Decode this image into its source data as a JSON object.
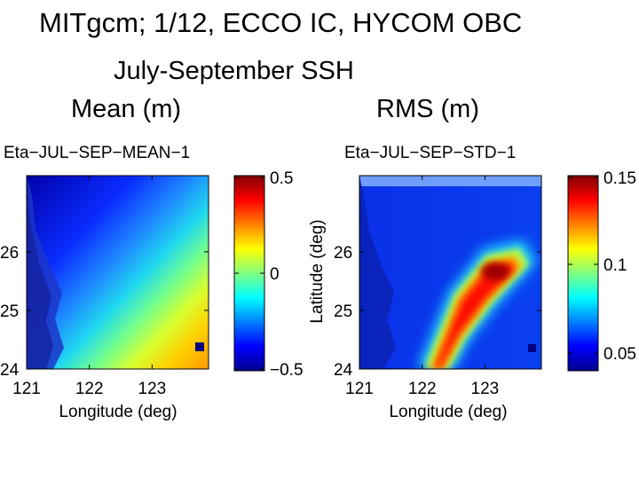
{
  "title_line1": "MITgcm; 1/12, ECCO IC, HYCOM OBC",
  "title_line2": "July-September SSH",
  "label_mean": "Mean  (m)",
  "label_rms": "RMS  (m)",
  "colors": {
    "frame": "#000000",
    "marker": "#00007f"
  },
  "chart_data": [
    {
      "type": "heatmap",
      "title": "Eta−JUL−SEP−MEAN−1",
      "xlabel": "Longitude (deg)",
      "ylabel": "",
      "xlim": [
        121,
        123.9
      ],
      "ylim": [
        24,
        27.3
      ],
      "xticks": [
        "121",
        "122",
        "123"
      ],
      "yticks": [
        "24",
        "25",
        "26"
      ],
      "colorbar": {
        "range": [
          -0.5,
          0.5
        ],
        "tick_labels": [
          "0.5",
          "0",
          "−0.5"
        ],
        "colormap": "jet"
      },
      "description_values": "SSH increases from about -0.5 m in the northwest to about 0.3 m in the southeast"
    },
    {
      "type": "heatmap",
      "title": "Eta−JUL−SEP−STD−1",
      "xlabel": "Longitude (deg)",
      "ylabel": "Latitude (deg)",
      "xlim": [
        121,
        123.9
      ],
      "ylim": [
        24,
        27.3
      ],
      "xticks": [
        "121",
        "122",
        "123"
      ],
      "yticks": [
        "24",
        "25",
        "26"
      ],
      "colorbar": {
        "range": [
          0.04,
          0.15
        ],
        "tick_labels": [
          "0.15",
          "0.1",
          "0.05"
        ],
        "colormap": "jet"
      },
      "description_values": "RMS peaks near 0.14 m along a band from (122.1, 24) to (123.7, 26); about 0.05 m elsewhere"
    }
  ]
}
